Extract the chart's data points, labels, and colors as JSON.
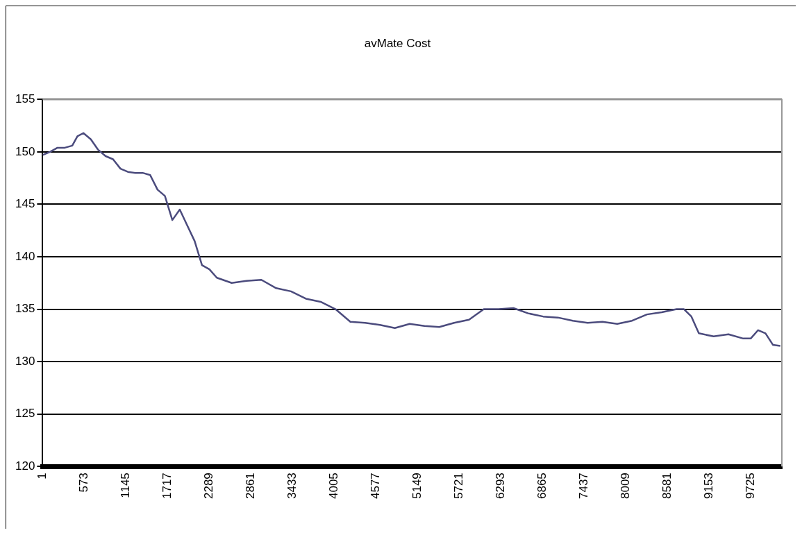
{
  "chart_data": {
    "type": "line",
    "title": "avMate Cost",
    "color": "#4b4b7d",
    "marker": "none",
    "grid": "y",
    "xlim": [
      1,
      10150
    ],
    "xticks": [
      1,
      573,
      1145,
      1717,
      2289,
      2861,
      3433,
      4005,
      4577,
      5149,
      5721,
      6293,
      6865,
      7437,
      8009,
      8581,
      9153,
      9725
    ],
    "ylim": [
      120,
      155
    ],
    "yticks": [
      120,
      125,
      130,
      135,
      140,
      145,
      150,
      155
    ],
    "x": [
      1,
      103,
      205,
      306,
      408,
      479,
      561,
      663,
      764,
      866,
      968,
      1070,
      1172,
      1273,
      1375,
      1477,
      1579,
      1680,
      1782,
      1884,
      1986,
      2088,
      2189,
      2291,
      2393,
      2597,
      2800,
      3004,
      3208,
      3411,
      3615,
      3818,
      4022,
      4226,
      4429,
      4633,
      4837,
      5040,
      5244,
      5447,
      5651,
      5855,
      6058,
      6262,
      6465,
      6669,
      6873,
      7076,
      7280,
      7483,
      7687,
      7890,
      8094,
      8298,
      8501,
      8705,
      8806,
      8908,
      9010,
      9213,
      9417,
      9620,
      9722,
      9824,
      9925,
      10027,
      10129
    ],
    "values": [
      149.7,
      150.0,
      150.4,
      150.4,
      150.6,
      151.5,
      151.8,
      151.2,
      150.2,
      149.6,
      149.3,
      148.4,
      148.1,
      148.0,
      148.0,
      147.8,
      146.4,
      145.8,
      143.5,
      144.5,
      143.0,
      141.5,
      139.2,
      138.8,
      138.0,
      137.5,
      137.7,
      137.8,
      137.0,
      136.7,
      136.0,
      135.7,
      135.0,
      133.8,
      133.7,
      133.5,
      133.2,
      133.6,
      133.4,
      133.3,
      133.7,
      134.0,
      135.0,
      135.0,
      135.1,
      134.6,
      134.3,
      134.2,
      133.9,
      133.7,
      133.8,
      133.6,
      133.9,
      134.5,
      134.7,
      135.0,
      135.0,
      134.3,
      132.7,
      132.4,
      132.6,
      132.2,
      132.2,
      133.0,
      132.7,
      131.6,
      131.5
    ]
  }
}
